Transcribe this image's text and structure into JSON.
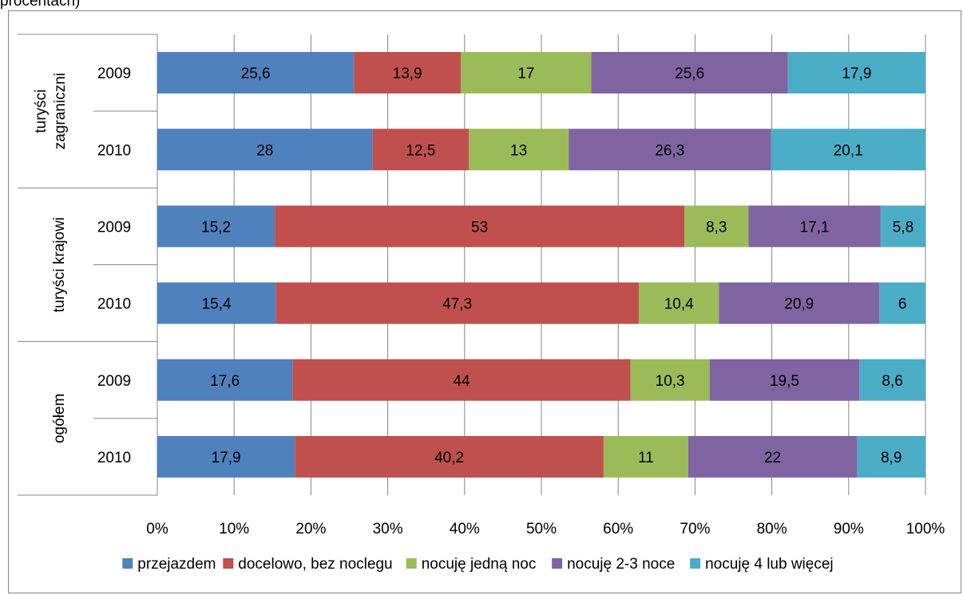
{
  "caption_fragment": "procentach)",
  "chart_data": {
    "type": "bar",
    "orientation": "horizontal",
    "stacked": "percent",
    "groups": [
      {
        "name": "turyści zagraniczni",
        "rows": [
          "2009",
          "2010"
        ]
      },
      {
        "name": "turyści krajowi",
        "rows": [
          "2009",
          "2010"
        ]
      },
      {
        "name": "ogółem",
        "rows": [
          "2009",
          "2010"
        ]
      }
    ],
    "categories": [
      "2009",
      "2010",
      "2009",
      "2010",
      "2009",
      "2010"
    ],
    "series": [
      {
        "name": "przejazdem",
        "color": "#4F81BD",
        "values": [
          25.6,
          28,
          15.2,
          15.4,
          17.6,
          17.9
        ],
        "labels": [
          "25,6",
          "28",
          "15,2",
          "15,4",
          "17,6",
          "17,9"
        ]
      },
      {
        "name": "docelowo, bez noclegu",
        "color": "#C0504D",
        "values": [
          13.9,
          12.5,
          53,
          47.3,
          44,
          40.2
        ],
        "labels": [
          "13,9",
          "12,5",
          "53",
          "47,3",
          "44",
          "40,2"
        ]
      },
      {
        "name": "nocuję jedną noc",
        "color": "#9BBB59",
        "values": [
          17,
          13,
          8.3,
          10.4,
          10.3,
          11
        ],
        "labels": [
          "17",
          "13",
          "8,3",
          "10,4",
          "10,3",
          "11"
        ]
      },
      {
        "name": "nocuję 2-3 noce",
        "color": "#8064A2",
        "values": [
          25.6,
          26.3,
          17.1,
          20.9,
          19.5,
          22
        ],
        "labels": [
          "25,6",
          "26,3",
          "17,1",
          "20,9",
          "19,5",
          "22"
        ]
      },
      {
        "name": "nocuję 4 lub więcej",
        "color": "#4BACC6",
        "values": [
          17.9,
          20.1,
          5.8,
          6,
          8.6,
          8.9
        ],
        "labels": [
          "17,9",
          "20,1",
          "5,8",
          "6",
          "8,6",
          "8,9"
        ]
      }
    ],
    "xlim": [
      0,
      100
    ],
    "xticks": [
      "0%",
      "10%",
      "20%",
      "30%",
      "40%",
      "50%",
      "60%",
      "70%",
      "80%",
      "90%",
      "100%"
    ],
    "grid": "vertical",
    "legend": "bottom"
  }
}
